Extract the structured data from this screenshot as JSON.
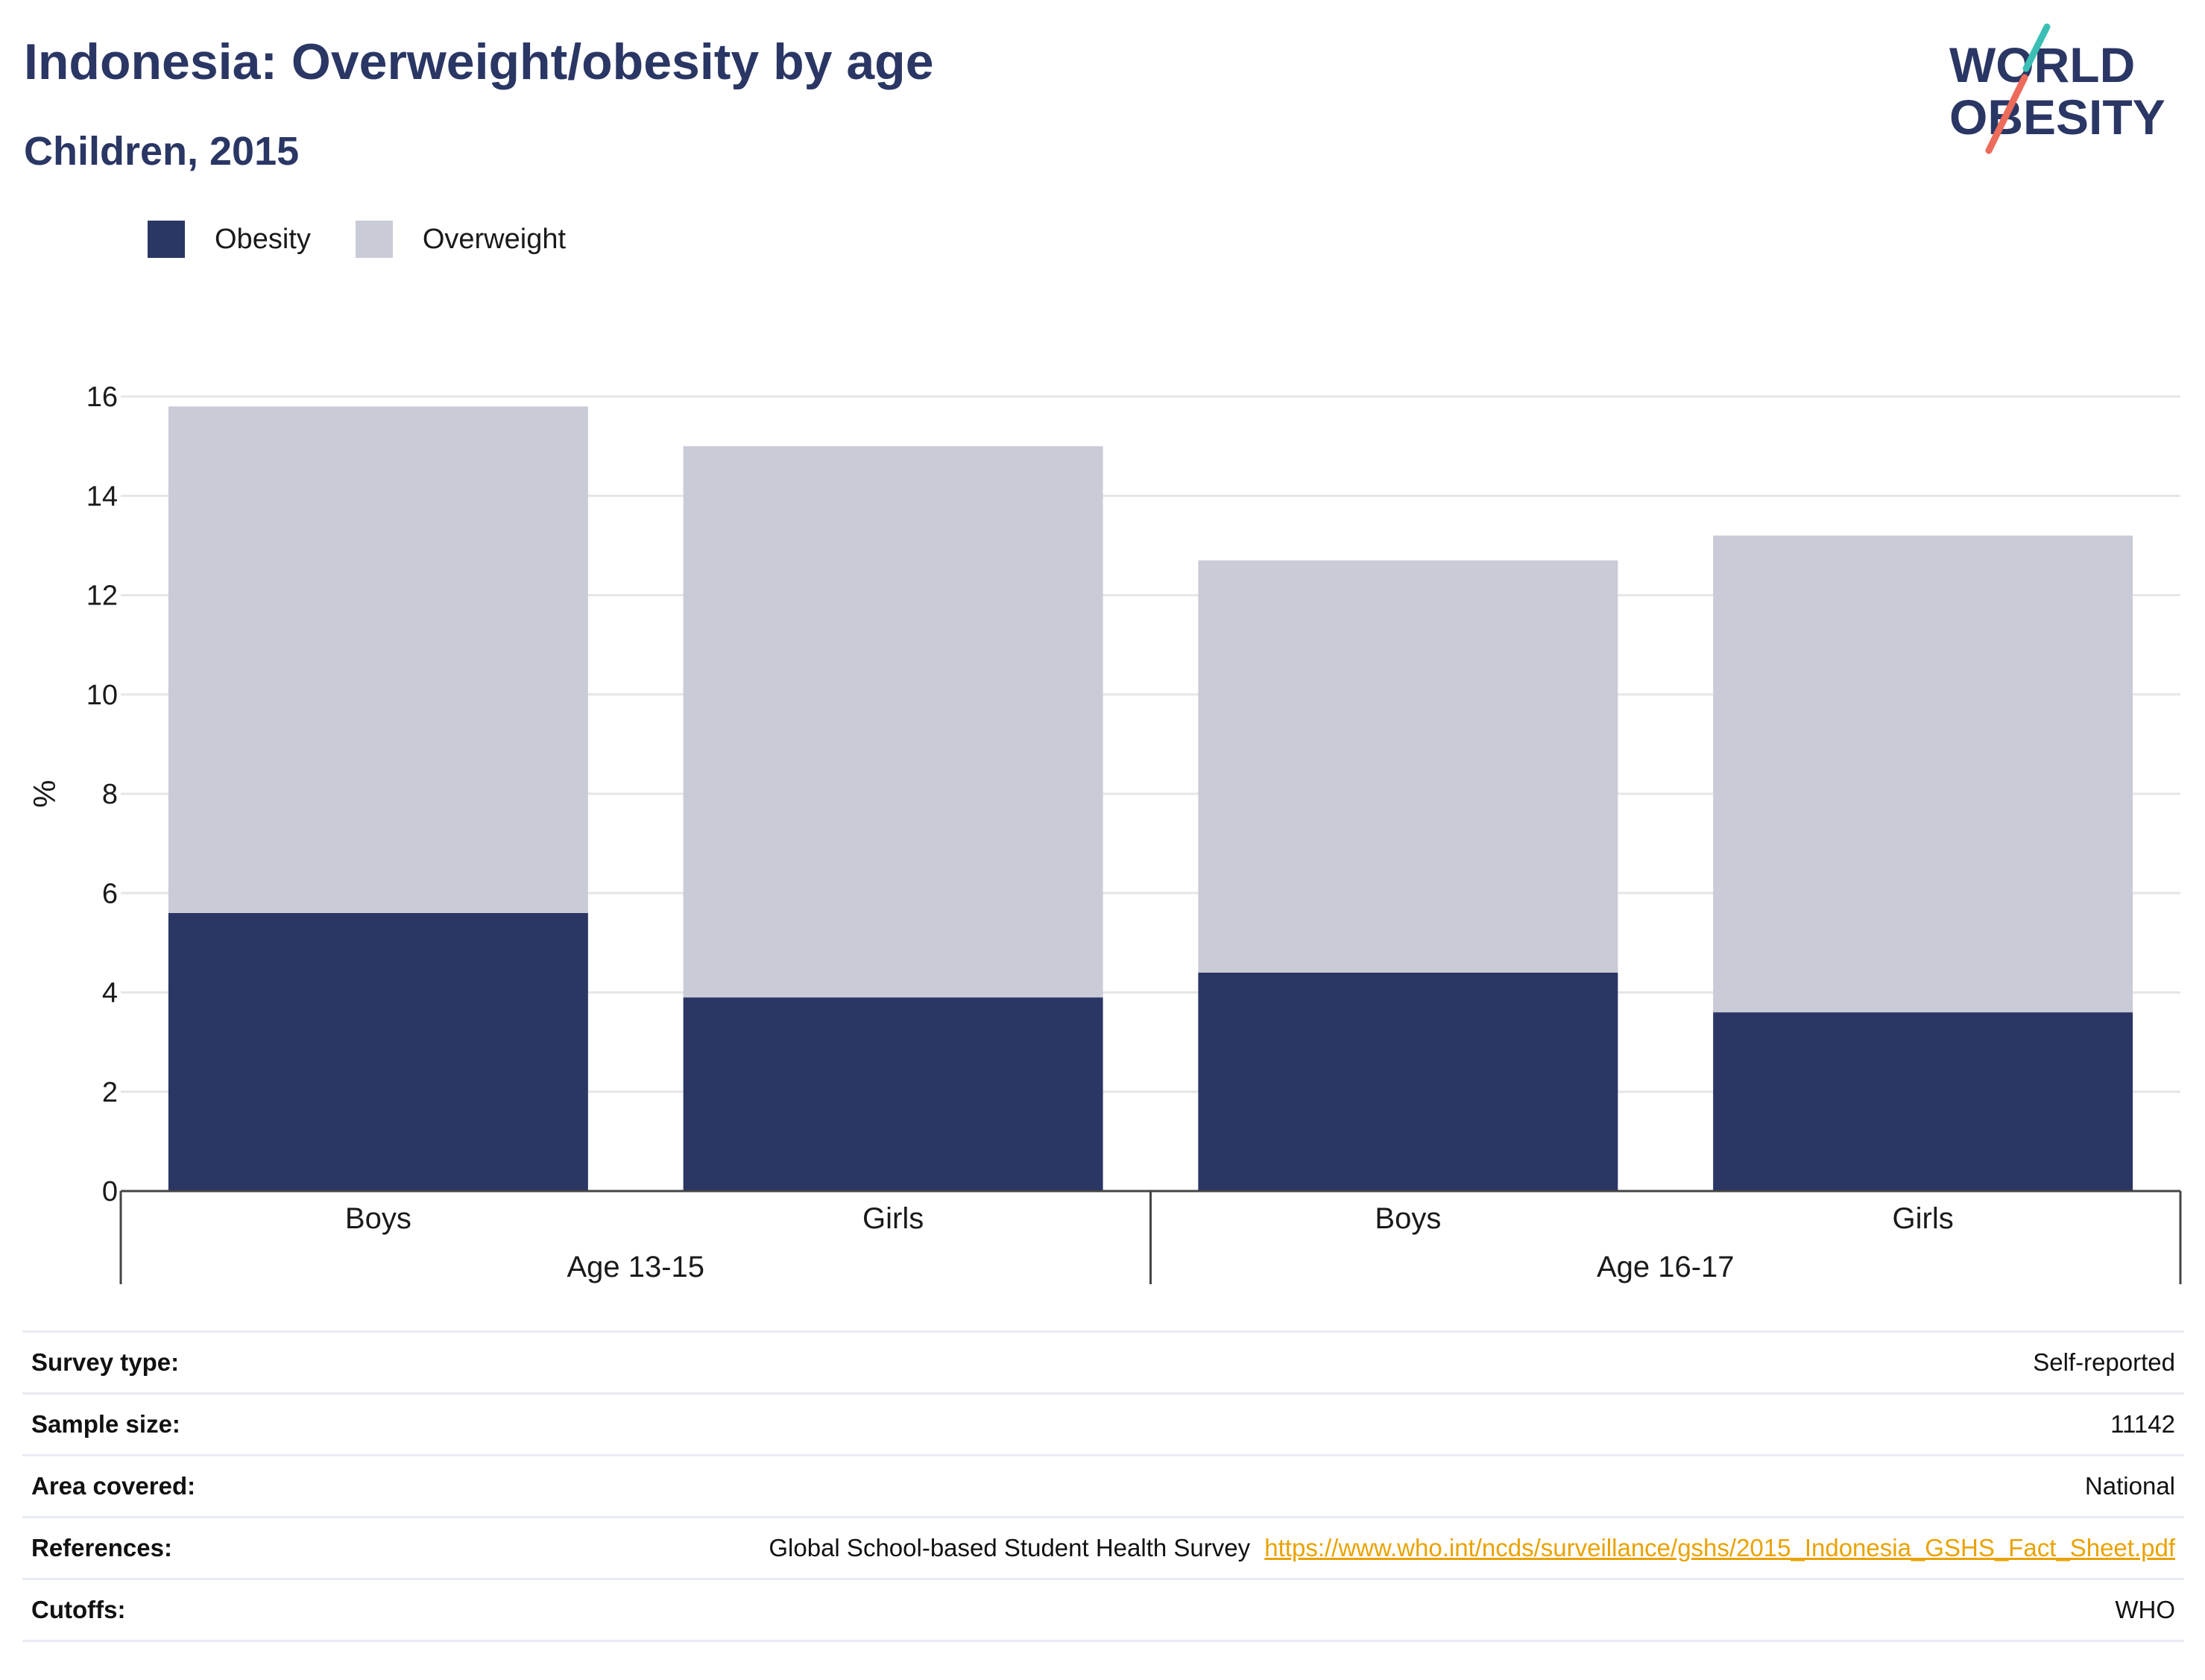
{
  "header": {
    "title": "Indonesia: Overweight/obesity by age",
    "subtitle": "Children, 2015",
    "logo_text_line1": "WORLD",
    "logo_text_line2": "OBESITY"
  },
  "colors": {
    "obesity": "#2a3664",
    "overweight": "#c9cbd7",
    "title": "#2a3664",
    "link": "#e9a200",
    "logo_teal": "#3bbfb5",
    "logo_coral": "#ec6b5a"
  },
  "chart_data": {
    "type": "bar",
    "stacked": true,
    "categories": [
      "Boys",
      "Girls",
      "Boys",
      "Girls"
    ],
    "groups": [
      {
        "label": "Age 13-15",
        "categories": [
          0,
          1
        ]
      },
      {
        "label": "Age 16-17",
        "categories": [
          2,
          3
        ]
      }
    ],
    "series": [
      {
        "name": "Obesity",
        "values": [
          5.6,
          3.9,
          4.4,
          3.6
        ],
        "color": "#2a3664"
      },
      {
        "name": "Overweight",
        "values": [
          10.2,
          11.1,
          8.3,
          9.6
        ],
        "color": "#c9cbd7"
      }
    ],
    "ylabel": "%",
    "xlabel": "",
    "ylim": [
      0,
      16
    ],
    "yticks": [
      0,
      2,
      4,
      6,
      8,
      10,
      12,
      14,
      16
    ],
    "grid": true,
    "legend_position": "top-left"
  },
  "info": [
    {
      "label": "Survey type:",
      "value": "Self-reported"
    },
    {
      "label": "Sample size:",
      "value": "11142"
    },
    {
      "label": "Area covered:",
      "value": "National"
    },
    {
      "label": "References:",
      "value": "Global School-based Student Health Survey",
      "link": "https://www.who.int/ncds/surveillance/gshs/2015_Indonesia_GSHS_Fact_Sheet.pdf"
    },
    {
      "label": "Cutoffs:",
      "value": "WHO"
    }
  ]
}
